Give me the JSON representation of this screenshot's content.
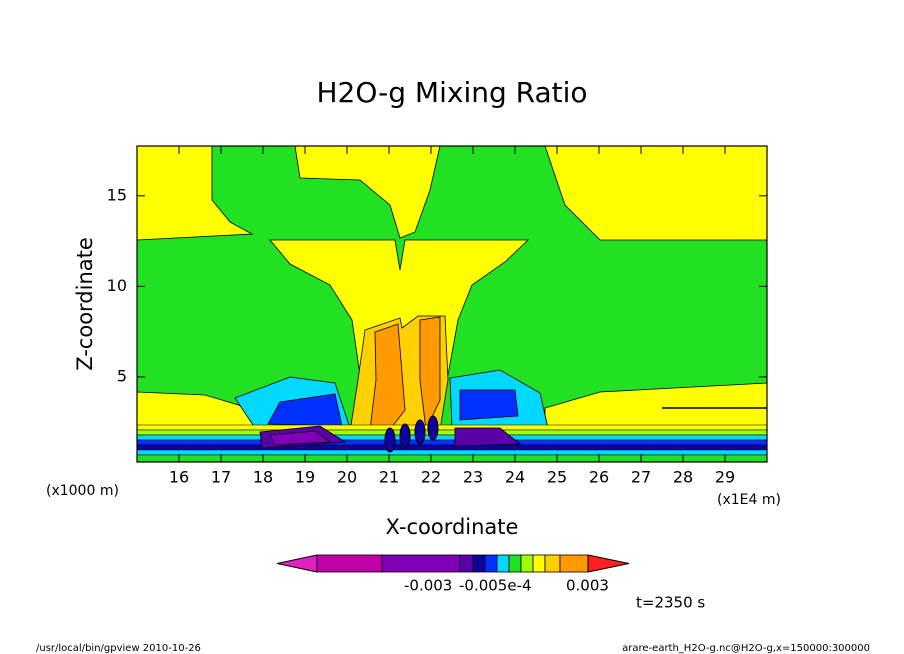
{
  "chart_data": {
    "type": "contour",
    "title": "H2O-g Mixing Ratio",
    "x_label": "X-coordinate",
    "y_label": "Z-coordinate",
    "x_unit_label": "(x1E4 m)",
    "y_unit_label": "(x1000 m)",
    "xlim": [
      15,
      30
    ],
    "ylim": [
      0.3,
      17.75
    ],
    "xticks": [
      16,
      17,
      18,
      19,
      20,
      21,
      22,
      23,
      24,
      25,
      26,
      27,
      28,
      29
    ],
    "yticks": [
      5,
      10,
      15
    ],
    "colorbar_colors": [
      "#e020c0",
      "#c000a8",
      "#8000b8",
      "#5a00a8",
      "#1000a0",
      "#0030ff",
      "#00d8ff",
      "#22e022",
      "#a0ff00",
      "#ffff00",
      "#ffd000",
      "#ff9a00",
      "#ff2020"
    ],
    "colorbar_labels": [
      "-0.003",
      "-0.005e-4",
      "0.003"
    ],
    "time_label": "t=2350 s",
    "footer_left": "/usr/local/bin/gpview  2010-10-26",
    "footer_right": "arare-earth_H2O-g.nc@H2O-g,x=150000:300000"
  }
}
